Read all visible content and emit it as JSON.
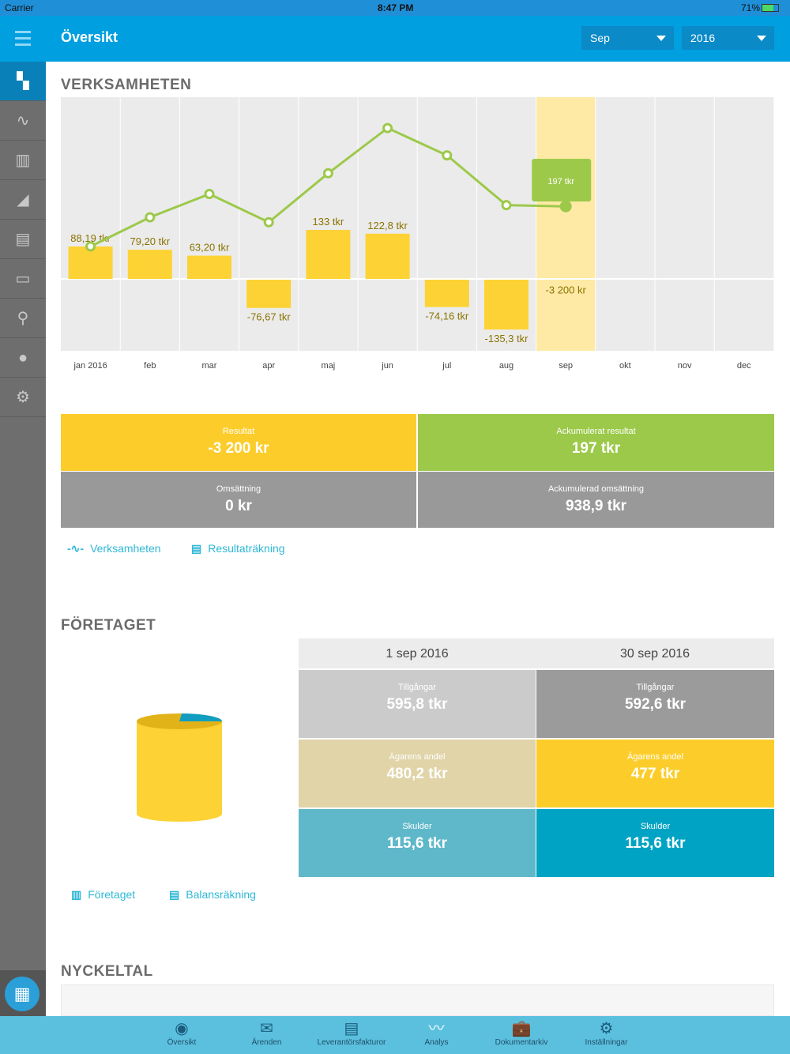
{
  "status": {
    "carrier": "Carrier",
    "time": "8:47 PM",
    "battery": "71%"
  },
  "header": {
    "title": "Översikt",
    "month": "Sep",
    "year": "2016"
  },
  "sidebar": [
    "dashboard-icon",
    "pulse-icon",
    "buildings-icon",
    "area-chart-icon",
    "document-icon",
    "archive-icon",
    "search-icon",
    "user-icon",
    "gear-icon"
  ],
  "verksamheten": {
    "title": "VERKSAMHETEN",
    "chart_data": {
      "type": "bar",
      "categories": [
        "jan 2016",
        "feb",
        "mar",
        "apr",
        "maj",
        "jun",
        "jul",
        "aug",
        "sep",
        "okt",
        "nov",
        "dec"
      ],
      "series": [
        {
          "name": "Resultat (tkr)",
          "type": "bar",
          "values": [
            88.19,
            79.2,
            63.2,
            -76.67,
            133,
            122.8,
            -74.16,
            -135.3,
            -3.2,
            null,
            null,
            null
          ],
          "labels": [
            "88,19 tkr",
            "79,20 tkr",
            "63,20 tkr",
            "-76,67 tkr",
            "133 tkr",
            "122,8 tkr",
            "-74,16 tkr",
            "-135,3 tkr",
            "-3 200 kr",
            "",
            "",
            ""
          ]
        },
        {
          "name": "Ackumulerat resultat (tkr)",
          "type": "line",
          "values": [
            88.19,
            167.39,
            230.59,
            153.92,
            286.92,
            409.72,
            335.56,
            200.26,
            197,
            null,
            null,
            null
          ]
        }
      ],
      "highlight": "sep",
      "highlight_label": "197 tkr",
      "colors": {
        "bar": "#fdd234",
        "line": "#9cc94a",
        "highlight": "#feeaa5"
      }
    },
    "tiles": [
      {
        "label": "Resultat",
        "value": "-3 200 kr",
        "color": "#fccd2a"
      },
      {
        "label": "Ackumulerat resultat",
        "value": "197 tkr",
        "color": "#9cc94a"
      },
      {
        "label": "Omsättning",
        "value": "0 kr",
        "color": "#999999"
      },
      {
        "label": "Ackumulerad omsättning",
        "value": "938,9 tkr",
        "color": "#999999"
      }
    ],
    "links": [
      "Verksamheten",
      "Resultaträkning"
    ]
  },
  "foretaget": {
    "title": "FÖRETAGET",
    "col1": "1 sep 2016",
    "col2": "30 sep 2016",
    "rows": [
      {
        "label": "Tillgångar",
        "v1": "595,8 tkr",
        "v2": "592,6 tkr"
      },
      {
        "label": "Ägarens andel",
        "v1": "480,2 tkr",
        "v2": "477 tkr"
      },
      {
        "label": "Skulder",
        "v1": "115,6 tkr",
        "v2": "115,6 tkr"
      }
    ],
    "links": [
      "Företaget",
      "Balansräkning"
    ]
  },
  "nyckeltal": {
    "title": "NYCKELTAL"
  },
  "tabs": [
    {
      "label": "Översikt",
      "icon": "◉"
    },
    {
      "label": "Ärenden",
      "icon": "✉"
    },
    {
      "label": "Leverantörsfakturor",
      "icon": "▤"
    },
    {
      "label": "Analys",
      "icon": "〰"
    },
    {
      "label": "Dokumentarkiv",
      "icon": "💼"
    },
    {
      "label": "Inställningar",
      "icon": "⚙"
    }
  ]
}
